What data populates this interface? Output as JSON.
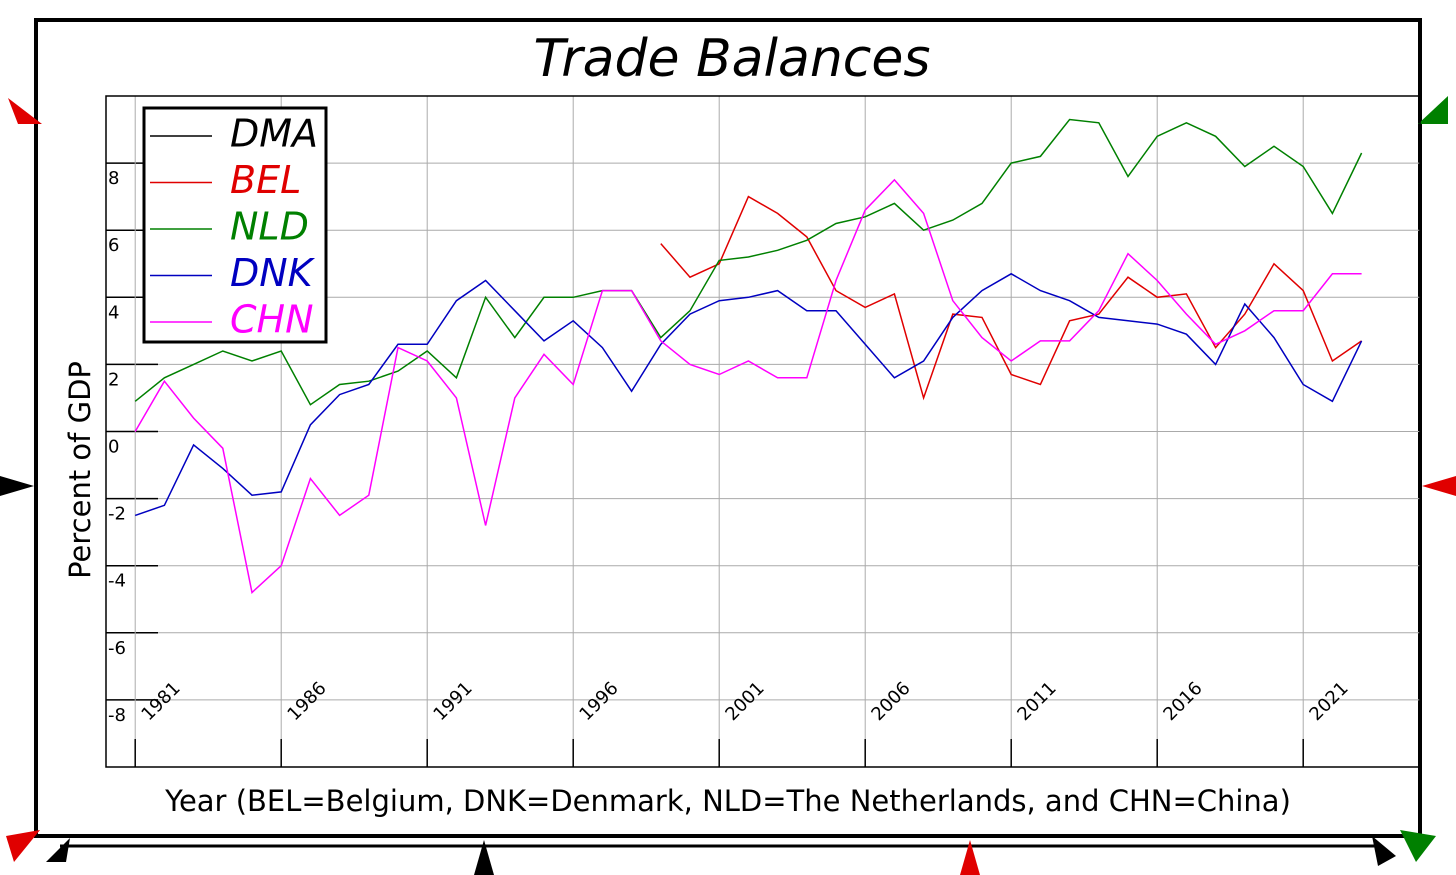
{
  "chart_data": {
    "type": "line",
    "title": "Trade Balances",
    "x_label": "Year (BEL=Belgium, DNK=Denmark, NLD=The Netherlands, and CHN=China)",
    "y_label": "Percent of GDP",
    "x": [
      1981,
      1982,
      1983,
      1984,
      1985,
      1986,
      1987,
      1988,
      1989,
      1990,
      1991,
      1992,
      1993,
      1994,
      1995,
      1996,
      1997,
      1998,
      1999,
      2000,
      2001,
      2002,
      2003,
      2004,
      2005,
      2006,
      2007,
      2008,
      2009,
      2010,
      2011,
      2012,
      2013,
      2014,
      2015,
      2016,
      2017,
      2018,
      2019,
      2020,
      2021,
      2022,
      2023
    ],
    "xlim": [
      1980,
      2025
    ],
    "xticks": [
      1981,
      1986,
      1991,
      1996,
      2001,
      2006,
      2011,
      2016,
      2021
    ],
    "ylim": [
      -10,
      10
    ],
    "yticks": [
      -8,
      -6,
      -4,
      -2,
      0,
      2,
      4,
      6,
      8
    ],
    "grid": true,
    "legend": "upper left",
    "series": [
      {
        "name": "DMA",
        "color": "#000000",
        "values": [
          null,
          null,
          null,
          null,
          null,
          null,
          null,
          null,
          null,
          null,
          null,
          null,
          null,
          null,
          null,
          null,
          null,
          null,
          null,
          null,
          null,
          null,
          null,
          null,
          null,
          null,
          null,
          null,
          null,
          null,
          null,
          null,
          null,
          null,
          null,
          null,
          null,
          null,
          null,
          null,
          null,
          null,
          null
        ]
      },
      {
        "name": "BEL",
        "color": "#e00000",
        "values": [
          null,
          null,
          null,
          null,
          null,
          null,
          null,
          null,
          null,
          null,
          null,
          null,
          null,
          null,
          null,
          null,
          null,
          null,
          5.6,
          4.6,
          5.0,
          7.0,
          6.5,
          5.8,
          4.2,
          3.7,
          4.1,
          1.0,
          3.5,
          3.4,
          1.7,
          1.4,
          3.3,
          3.5,
          4.6,
          4.0,
          4.1,
          2.5,
          3.5,
          5.0,
          4.2,
          2.1,
          2.7
        ]
      },
      {
        "name": "NLD",
        "color": "#008000",
        "values": [
          0.9,
          1.6,
          2.0,
          2.4,
          2.1,
          2.4,
          0.8,
          1.4,
          1.5,
          1.8,
          2.4,
          1.6,
          4.0,
          2.8,
          4.0,
          4.0,
          4.2,
          4.2,
          2.8,
          3.6,
          5.1,
          5.2,
          5.4,
          5.7,
          6.2,
          6.4,
          6.8,
          6.0,
          6.3,
          6.8,
          8.0,
          8.2,
          9.3,
          9.2,
          7.6,
          8.8,
          9.2,
          8.8,
          7.9,
          8.5,
          7.9,
          6.5,
          8.3
        ]
      },
      {
        "name": "DNK",
        "color": "#0000c0",
        "values": [
          -2.5,
          -2.2,
          -0.4,
          -1.1,
          -1.9,
          -1.8,
          0.2,
          1.1,
          1.4,
          2.6,
          2.6,
          3.9,
          4.5,
          3.6,
          2.7,
          3.3,
          2.5,
          1.2,
          2.6,
          3.5,
          3.9,
          4.0,
          4.2,
          3.6,
          3.6,
          2.6,
          1.6,
          2.1,
          3.4,
          4.2,
          4.7,
          4.2,
          3.9,
          3.4,
          3.3,
          3.2,
          2.9,
          2.0,
          3.8,
          2.8,
          1.4,
          0.9,
          2.7
        ]
      },
      {
        "name": "CHN",
        "color": "#ff00ff",
        "values": [
          0.0,
          1.5,
          0.4,
          -0.5,
          -4.8,
          -4.0,
          -1.4,
          -2.5,
          -1.9,
          2.5,
          2.1,
          1.0,
          -2.8,
          1.0,
          2.3,
          1.4,
          4.2,
          4.2,
          2.7,
          2.0,
          1.7,
          2.1,
          1.6,
          1.6,
          4.5,
          6.6,
          7.5,
          6.5,
          3.9,
          2.8,
          2.1,
          2.7,
          2.7,
          3.6,
          5.3,
          4.5,
          3.5,
          2.6,
          3.0,
          3.6,
          3.6,
          4.7,
          4.7
        ]
      }
    ]
  }
}
